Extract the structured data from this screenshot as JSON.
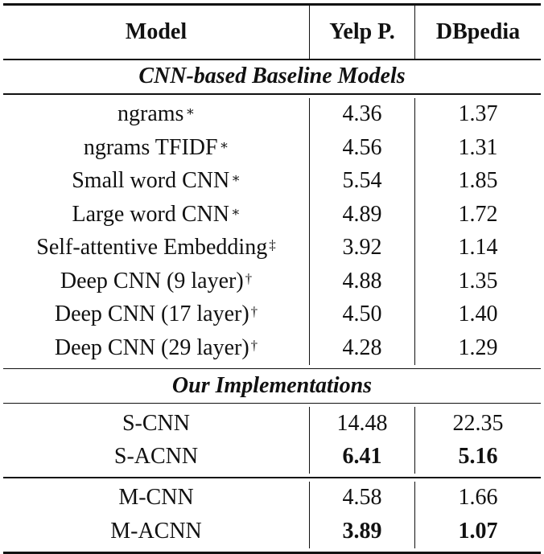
{
  "header": {
    "model": "Model",
    "yelp": "Yelp P.",
    "dbpedia": "DBpedia"
  },
  "section_baseline": "CNN-based Baseline Models",
  "baseline_rows": [
    {
      "model": "ngrams",
      "mark": "∗",
      "yelp": "4.36",
      "dbpedia": "1.37"
    },
    {
      "model": "ngrams TFIDF",
      "mark": "∗",
      "yelp": "4.56",
      "dbpedia": "1.31"
    },
    {
      "model": "Small word CNN",
      "mark": "∗",
      "yelp": "5.54",
      "dbpedia": "1.85"
    },
    {
      "model": "Large word CNN",
      "mark": "∗",
      "yelp": "4.89",
      "dbpedia": "1.72"
    },
    {
      "model": "Self-attentive Embedding ",
      "mark": "‡",
      "yelp": "3.92",
      "dbpedia": "1.14"
    },
    {
      "model": "Deep CNN (9 layer)",
      "mark": "†",
      "yelp": "4.88",
      "dbpedia": "1.35"
    },
    {
      "model": "Deep CNN (17 layer)",
      "mark": "†",
      "yelp": "4.50",
      "dbpedia": "1.40"
    },
    {
      "model": "Deep CNN (29 layer)",
      "mark": "†",
      "yelp": "4.28",
      "dbpedia": "1.29"
    }
  ],
  "section_ours": "Our Implementations",
  "ours_group1": [
    {
      "model": "S-CNN",
      "yelp": "14.48",
      "dbpedia": "22.35",
      "bold": false
    },
    {
      "model": "S-ACNN",
      "yelp": "6.41",
      "dbpedia": "5.16",
      "bold": true
    }
  ],
  "ours_group2": [
    {
      "model": "M-CNN",
      "yelp": "4.58",
      "dbpedia": "1.66",
      "bold": false
    },
    {
      "model": "M-ACNN",
      "yelp": "3.89",
      "dbpedia": "1.07",
      "bold": true
    }
  ]
}
